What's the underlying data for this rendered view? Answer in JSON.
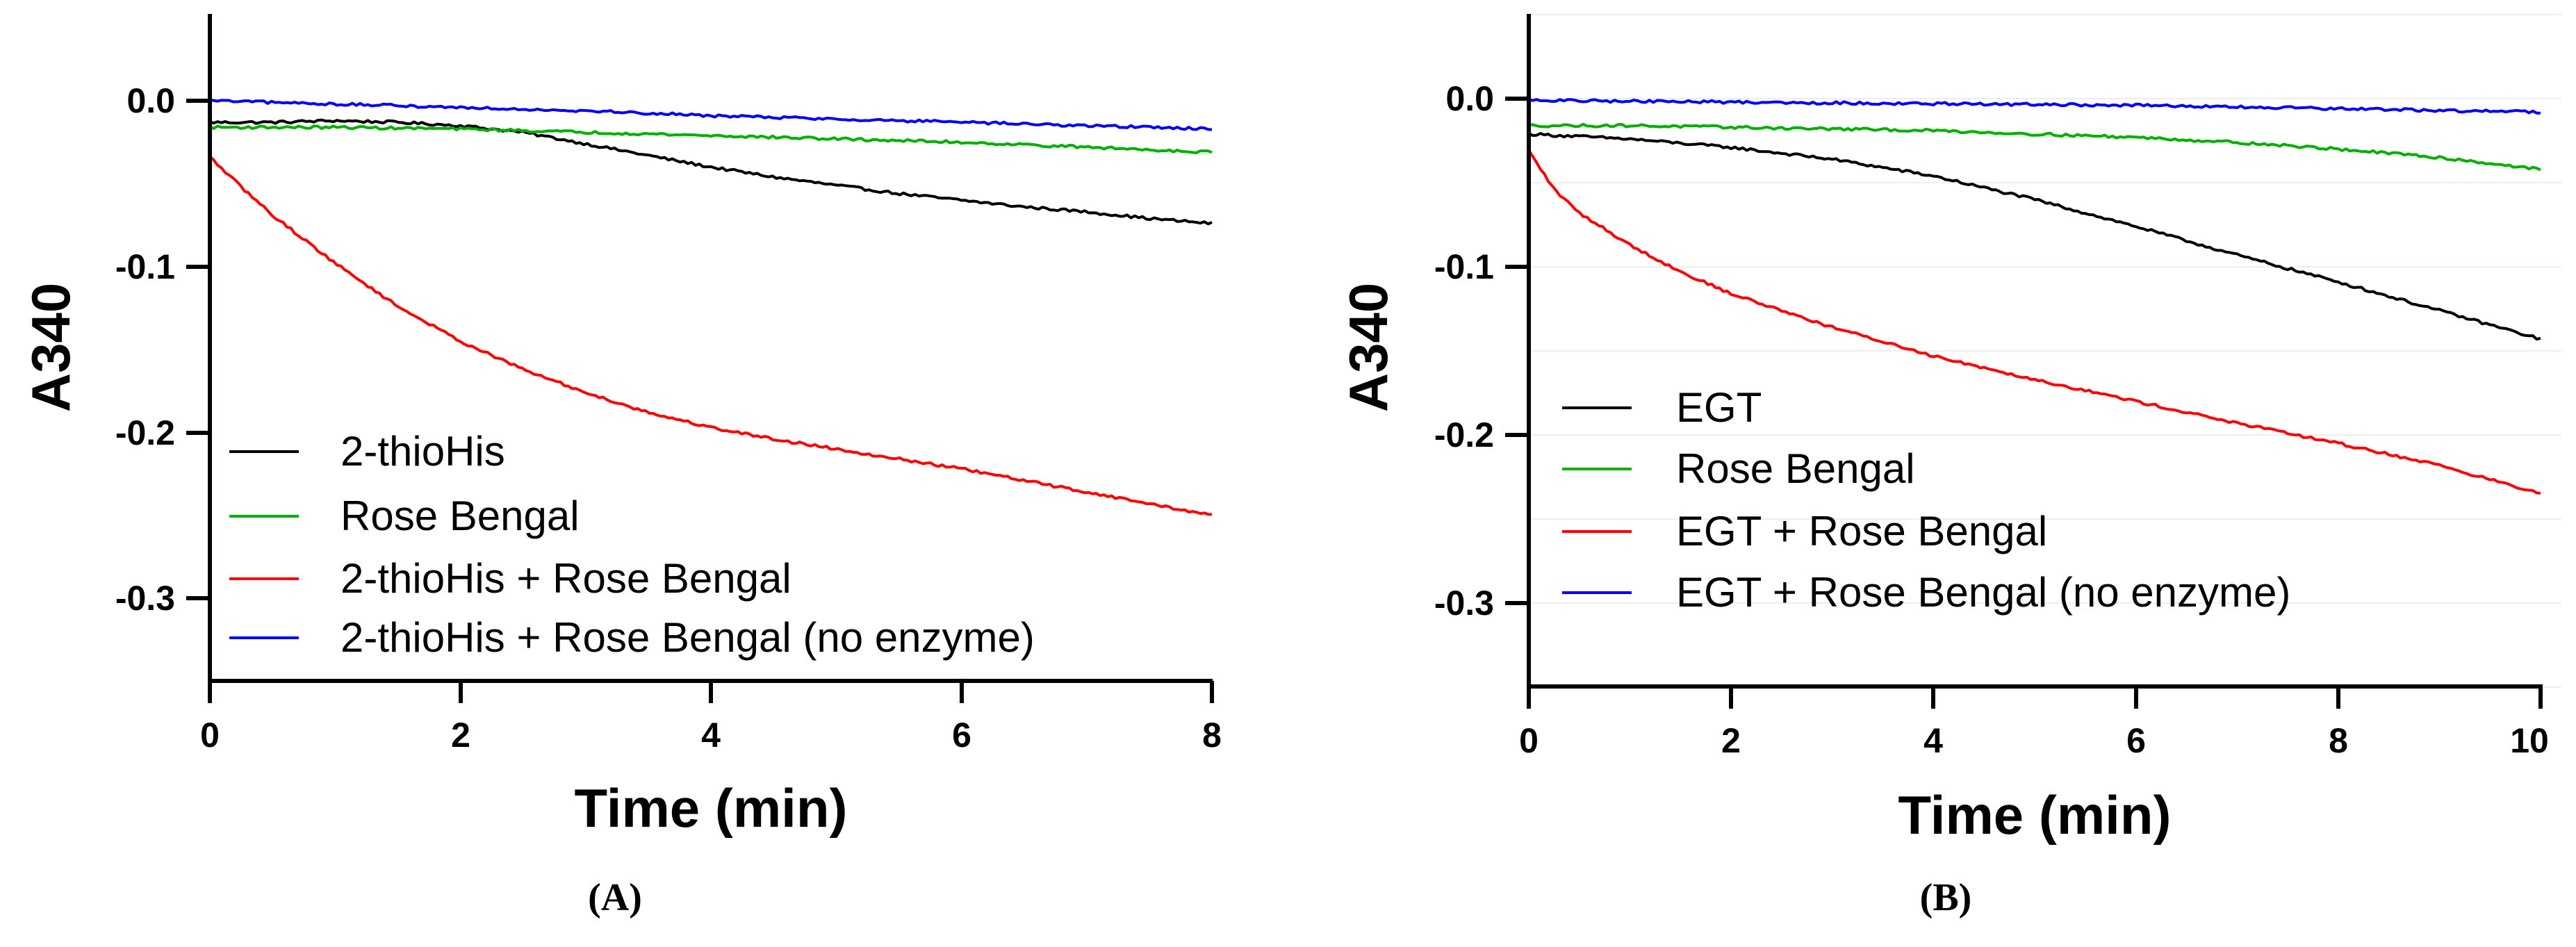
{
  "chart_data": [
    {
      "type": "line",
      "panel_label": "(A)",
      "xlabel": "Time (min)",
      "ylabel": "A340",
      "xlim": [
        0,
        8
      ],
      "ylim": [
        -0.35,
        0.05
      ],
      "xticks": [
        0,
        2,
        4,
        6,
        8
      ],
      "yticks": [
        0.0,
        -0.1,
        -0.2,
        -0.3
      ],
      "xtick_labels": [
        "0",
        "2",
        "4",
        "6",
        "8"
      ],
      "ytick_labels": [
        "0.0",
        "-0.1",
        "-0.2",
        "-0.3"
      ],
      "grid": false,
      "legend_position": "bottom-left",
      "series": [
        {
          "name": "2-thioHis",
          "color": "#000000",
          "x": [
            0,
            0.5,
            1,
            1.5,
            2,
            2.5,
            3,
            3.5,
            4,
            4.5,
            5,
            5.5,
            6,
            6.5,
            7,
            7.5,
            8
          ],
          "y": [
            -0.013,
            -0.013,
            -0.012,
            -0.013,
            -0.015,
            -0.019,
            -0.026,
            -0.033,
            -0.04,
            -0.046,
            -0.051,
            -0.056,
            -0.06,
            -0.064,
            -0.067,
            -0.071,
            -0.074
          ]
        },
        {
          "name": "Rose Bengal",
          "color": "#00b000",
          "x": [
            0,
            1,
            2,
            3,
            4,
            5,
            6,
            7,
            8
          ],
          "y": [
            -0.016,
            -0.016,
            -0.017,
            -0.019,
            -0.021,
            -0.023,
            -0.025,
            -0.028,
            -0.031
          ]
        },
        {
          "name": "2-thioHis + Rose Bengal",
          "color": "#ff0000",
          "x": [
            0,
            0.25,
            0.5,
            1,
            1.5,
            2,
            2.5,
            3,
            3.5,
            4,
            4.5,
            5,
            5.5,
            6,
            6.5,
            7,
            7.5,
            8
          ],
          "y": [
            -0.034,
            -0.052,
            -0.069,
            -0.098,
            -0.124,
            -0.145,
            -0.162,
            -0.176,
            -0.188,
            -0.197,
            -0.204,
            -0.21,
            -0.216,
            -0.222,
            -0.229,
            -0.236,
            -0.243,
            -0.25
          ]
        },
        {
          "name": "2-thioHis + Rose Bengal (no enzyme)",
          "color": "#0000ff",
          "x": [
            0,
            1,
            2,
            3,
            4,
            5,
            6,
            7,
            8
          ],
          "y": [
            0.0,
            -0.002,
            -0.004,
            -0.006,
            -0.009,
            -0.011,
            -0.013,
            -0.015,
            -0.017
          ]
        }
      ]
    },
    {
      "type": "line",
      "panel_label": "(B)",
      "xlabel": "Time (min)",
      "ylabel": "A340",
      "xlim": [
        0,
        10
      ],
      "ylim": [
        -0.35,
        0.05
      ],
      "xticks": [
        0,
        2,
        4,
        6,
        8,
        10
      ],
      "yticks": [
        0.0,
        -0.1,
        -0.2,
        -0.3
      ],
      "xtick_labels": [
        "0",
        "2",
        "4",
        "6",
        "8",
        "10"
      ],
      "ytick_labels": [
        "0.0",
        "-0.1",
        "-0.2",
        "-0.3"
      ],
      "grid": true,
      "legend_position": "bottom-left",
      "series": [
        {
          "name": "EGT",
          "color": "#000000",
          "x": [
            0,
            1,
            2,
            3,
            4,
            5,
            6,
            7,
            8,
            9,
            10
          ],
          "y": [
            -0.021,
            -0.024,
            -0.029,
            -0.036,
            -0.046,
            -0.06,
            -0.076,
            -0.093,
            -0.109,
            -0.126,
            -0.143
          ]
        },
        {
          "name": "Rose Bengal",
          "color": "#00b000",
          "x": [
            0,
            1,
            2,
            3,
            4,
            5,
            6,
            7,
            8,
            9,
            10
          ],
          "y": [
            -0.016,
            -0.016,
            -0.017,
            -0.018,
            -0.019,
            -0.021,
            -0.023,
            -0.026,
            -0.03,
            -0.035,
            -0.042
          ]
        },
        {
          "name": "EGT + Rose Bengal",
          "color": "#ff0000",
          "x": [
            0,
            0.25,
            0.5,
            1,
            1.5,
            2,
            3,
            4,
            5,
            6,
            7,
            8,
            9,
            10
          ],
          "y": [
            -0.031,
            -0.054,
            -0.068,
            -0.087,
            -0.103,
            -0.116,
            -0.136,
            -0.153,
            -0.167,
            -0.18,
            -0.193,
            -0.205,
            -0.218,
            -0.235
          ]
        },
        {
          "name": "EGT + Rose Bengal (no enzyme)",
          "color": "#0000ff",
          "x": [
            0,
            2,
            4,
            6,
            8,
            10
          ],
          "y": [
            -0.001,
            -0.002,
            -0.003,
            -0.004,
            -0.006,
            -0.008
          ]
        }
      ]
    }
  ]
}
